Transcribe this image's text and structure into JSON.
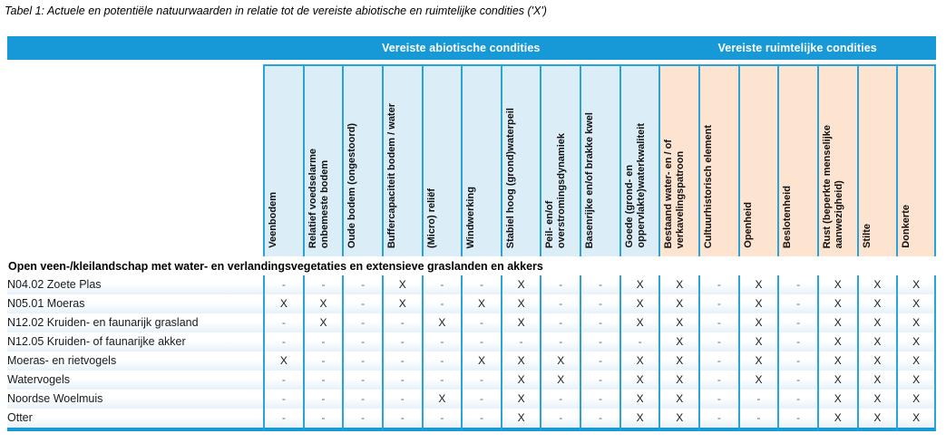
{
  "title": "Tabel 1: Actuele en potentiële natuurwaarden in relatie tot de vereiste abiotische en ruimtelijke condities ('X')",
  "table": {
    "band": {
      "groups": [
        {
          "id": "abiotic",
          "label": "Vereiste abiotische condities",
          "span": 10
        },
        {
          "id": "spatial",
          "label": "Vereiste ruimtelijke condities",
          "span": 7
        }
      ]
    },
    "columns": [
      {
        "label": "Veenbodem",
        "group": "abiotic"
      },
      {
        "label": "Relatief voedselarme\nonbemeste bodem",
        "group": "abiotic"
      },
      {
        "label": "Oude bodem (ongestoord)",
        "group": "abiotic"
      },
      {
        "label": "Buffercapaciteit bodem / water",
        "group": "abiotic"
      },
      {
        "label": "(Micro) reliëf",
        "group": "abiotic"
      },
      {
        "label": "Windwerking",
        "group": "abiotic"
      },
      {
        "label": "Stabiel hoog (grond)waterpeil",
        "group": "abiotic"
      },
      {
        "label": "Peil- en/of\noverstromingsdynamiek",
        "group": "abiotic"
      },
      {
        "label": "Basenrijke en/of brakke kwel",
        "group": "abiotic"
      },
      {
        "label": "Goede (grond- en\noppervlakte)waterkwaliteit",
        "group": "abiotic"
      },
      {
        "label": "Bestaand water- en / of\nverkavelingspatroon",
        "group": "spatial"
      },
      {
        "label": "Cultuurhistorisch element",
        "group": "spatial"
      },
      {
        "label": "Openheid",
        "group": "spatial"
      },
      {
        "label": "Beslotenheid",
        "group": "spatial"
      },
      {
        "label": "Rust (beperkte menselijke\naanwezigheid)",
        "group": "spatial"
      },
      {
        "label": "Stilte",
        "group": "spatial"
      },
      {
        "label": "Donkerte",
        "group": "spatial"
      }
    ],
    "section_header": "Open veen-/kleilandschap met water- en verlandingsvegetaties en extensieve graslanden en akkers",
    "rows": [
      {
        "label": "N04.02 Zoete Plas",
        "values": [
          "-",
          "-",
          "-",
          "X",
          "-",
          "-",
          "X",
          "-",
          "-",
          "X",
          "X",
          "-",
          "X",
          "-",
          "X",
          "X",
          "X"
        ]
      },
      {
        "label": "N05.01 Moeras",
        "values": [
          "X",
          "X",
          "-",
          "X",
          "-",
          "X",
          "X",
          "-",
          "-",
          "X",
          "X",
          "-",
          "X",
          "-",
          "X",
          "X",
          "X"
        ]
      },
      {
        "label": "N12.02 Kruiden- en faunarijk grasland",
        "values": [
          "-",
          "X",
          "-",
          "-",
          "X",
          "-",
          "X",
          "-",
          "-",
          "X",
          "X",
          "-",
          "X",
          "-",
          "X",
          "X",
          "X"
        ]
      },
      {
        "label": "N12.05 Kruiden- of faunarijke akker",
        "values": [
          "-",
          "-",
          "-",
          "-",
          "-",
          "-",
          "-",
          "-",
          "-",
          "-",
          "X",
          "-",
          "X",
          "-",
          "X",
          "X",
          "X"
        ]
      },
      {
        "label": "Moeras- en rietvogels",
        "values": [
          "X",
          "-",
          "-",
          "-",
          "-",
          "X",
          "X",
          "X",
          "-",
          "X",
          "X",
          "-",
          "X",
          "-",
          "X",
          "X",
          "X"
        ]
      },
      {
        "label": "Watervogels",
        "values": [
          "-",
          "-",
          "-",
          "-",
          "-",
          "-",
          "X",
          "X",
          "-",
          "X",
          "X",
          "-",
          "X",
          "-",
          "X",
          "X",
          "X"
        ]
      },
      {
        "label": "Noordse Woelmuis",
        "values": [
          "-",
          "-",
          "-",
          "-",
          "X",
          "-",
          "X",
          "-",
          "-",
          "X",
          "X",
          "-",
          "-",
          "-",
          "X",
          "X",
          "X"
        ]
      },
      {
        "label": "Otter",
        "values": [
          "-",
          "-",
          "-",
          "-",
          "-",
          "-",
          "X",
          "-",
          "-",
          "X",
          "X",
          "-",
          "-",
          "-",
          "X",
          "X",
          "X"
        ]
      }
    ]
  },
  "colors": {
    "band_blue": "#1899d7",
    "divider": "#2aa3d9",
    "abiotic_header_bg": "#dbedf6",
    "spatial_header_bg": "#fce4d0",
    "row_stripe": "#e8f2f9",
    "x_text": "#1a1a1a",
    "dash_text": "#666666"
  }
}
